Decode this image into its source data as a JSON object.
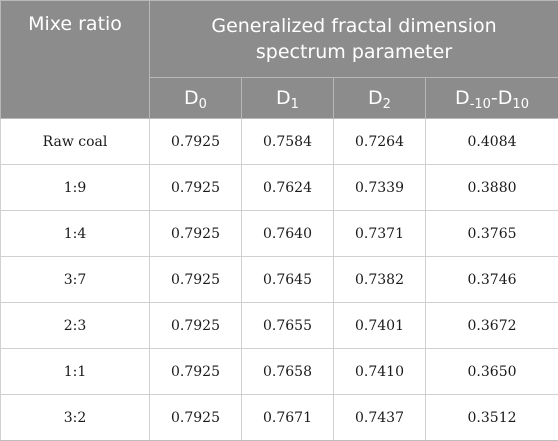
{
  "header": {
    "col0": "Mixe ratio",
    "group_line1": "Generalized fractal dimension",
    "group_line2": "spectrum parameter",
    "cols": [
      {
        "base": "D",
        "sub": "0"
      },
      {
        "base": "D",
        "sub": "1"
      },
      {
        "base": "D",
        "sub": "2"
      },
      {
        "base": "D",
        "sub": "-10",
        "sep": "-",
        "base2": "D",
        "sub2": "10"
      }
    ]
  },
  "rows": [
    {
      "label": "Raw coal",
      "d0": "0.7925",
      "d1": "0.7584",
      "d2": "0.7264",
      "dspan": "0.4084"
    },
    {
      "label": "1:9",
      "d0": "0.7925",
      "d1": "0.7624",
      "d2": "0.7339",
      "dspan": "0.3880"
    },
    {
      "label": "1:4",
      "d0": "0.7925",
      "d1": "0.7640",
      "d2": "0.7371",
      "dspan": "0.3765"
    },
    {
      "label": "3:7",
      "d0": "0.7925",
      "d1": "0.7645",
      "d2": "0.7382",
      "dspan": "0.3746"
    },
    {
      "label": "2:3",
      "d0": "0.7925",
      "d1": "0.7655",
      "d2": "0.7401",
      "dspan": "0.3672"
    },
    {
      "label": "1:1",
      "d0": "0.7925",
      "d1": "0.7658",
      "d2": "0.7410",
      "dspan": "0.3650"
    },
    {
      "label": "3:2",
      "d0": "0.7925",
      "d1": "0.7671",
      "d2": "0.7437",
      "dspan": "0.3512"
    }
  ],
  "colors": {
    "header_bg": "#8c8c8c",
    "header_text": "#ffffff",
    "row_border": "#d0d0d0"
  }
}
